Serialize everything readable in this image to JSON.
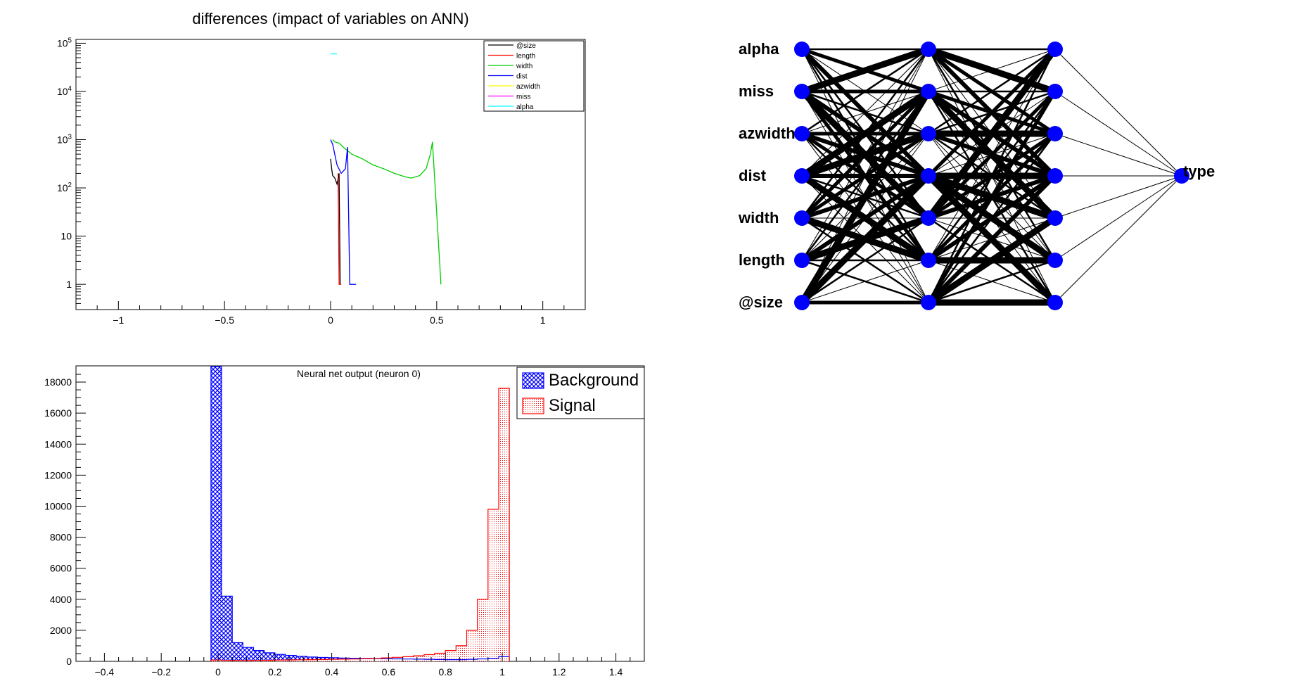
{
  "chart_data": [
    {
      "type": "line",
      "title": "differences (impact of variables on ANN)",
      "xlabel": "",
      "ylabel": "",
      "y_scale": "log",
      "xlim": [
        -1.2,
        1.2
      ],
      "ylim": [
        0.3,
        120000
      ],
      "x_ticks": [
        -1,
        -0.5,
        0,
        0.5,
        1
      ],
      "x_tick_labels": [
        "−1",
        "−0.5",
        "0",
        "0.5",
        "1"
      ],
      "y_ticks": [
        1,
        10,
        100,
        1000,
        10000,
        100000
      ],
      "y_tick_labels": [
        "1",
        "10",
        "10^2",
        "10^3",
        "10^4",
        "10^5"
      ],
      "legend_position": "top-right",
      "series": [
        {
          "name": "@size",
          "color": "#000000",
          "x": [
            0.0,
            0.005,
            0.01,
            0.02,
            0.03,
            0.04,
            0.045
          ],
          "y": [
            400,
            250,
            180,
            160,
            120,
            200,
            1
          ]
        },
        {
          "name": "length",
          "color": "#ff0000",
          "x": [
            0.035,
            0.04,
            0.045,
            0.05
          ],
          "y": [
            200,
            1,
            1,
            1
          ]
        },
        {
          "name": "width",
          "color": "#00cc00",
          "x": [
            0.01,
            0.02,
            0.04,
            0.06,
            0.1,
            0.15,
            0.2,
            0.25,
            0.3,
            0.35,
            0.38,
            0.42,
            0.45,
            0.47,
            0.48,
            0.52
          ],
          "y": [
            1000,
            900,
            850,
            700,
            500,
            400,
            300,
            250,
            200,
            170,
            160,
            180,
            250,
            500,
            900,
            1
          ]
        },
        {
          "name": "dist",
          "color": "#0000ff",
          "x": [
            0.0,
            0.01,
            0.03,
            0.05,
            0.07,
            0.08,
            0.09,
            0.11,
            0.12
          ],
          "y": [
            1000,
            800,
            300,
            200,
            250,
            700,
            1,
            1,
            1
          ]
        },
        {
          "name": "azwidth",
          "color": "#ffff00",
          "x": [],
          "y": []
        },
        {
          "name": "miss",
          "color": "#ff00ff",
          "x": [],
          "y": []
        },
        {
          "name": "alpha",
          "color": "#00ffff",
          "x": [
            0.0,
            0.01,
            0.02,
            0.03
          ],
          "y": [
            60000,
            60000,
            60000,
            60000
          ]
        }
      ]
    },
    {
      "type": "bar",
      "title": "Neural net output (neuron 0)",
      "xlabel": "",
      "ylabel": "",
      "xlim": [
        -0.5,
        1.5
      ],
      "ylim": [
        0,
        19000
      ],
      "x_ticks": [
        -0.4,
        -0.2,
        0,
        0.2,
        0.4,
        0.6,
        0.8,
        1,
        1.2,
        1.4
      ],
      "x_tick_labels": [
        "−0.4",
        "−0.2",
        "0",
        "0.2",
        "0.4",
        "0.6",
        "0.8",
        "1",
        "1.2",
        "1.4"
      ],
      "y_ticks": [
        0,
        2000,
        4000,
        6000,
        8000,
        10000,
        12000,
        14000,
        16000,
        18000
      ],
      "y_tick_labels": [
        "0",
        "2000",
        "4000",
        "6000",
        "8000",
        "10000",
        "12000",
        "14000",
        "16000",
        "18000"
      ],
      "legend_position": "top-right",
      "bin_edges": [
        -0.025,
        0.0125,
        0.05,
        0.0875,
        0.125,
        0.1625,
        0.2,
        0.2375,
        0.275,
        0.3125,
        0.35,
        0.3875,
        0.425,
        0.4625,
        0.5,
        0.5375,
        0.575,
        0.6125,
        0.65,
        0.6875,
        0.725,
        0.7625,
        0.8,
        0.8375,
        0.875,
        0.9125,
        0.95,
        0.9875,
        1.025
      ],
      "series": [
        {
          "name": "Background",
          "color": "#0000ff",
          "values": [
            19000,
            4200,
            1200,
            900,
            700,
            550,
            450,
            380,
            320,
            280,
            250,
            230,
            210,
            200,
            190,
            180,
            170,
            160,
            150,
            140,
            130,
            120,
            110,
            110,
            130,
            160,
            200,
            300
          ]
        },
        {
          "name": "Signal",
          "color": "#ff0000",
          "values": [
            80,
            60,
            50,
            50,
            60,
            70,
            80,
            90,
            100,
            110,
            120,
            130,
            140,
            150,
            170,
            190,
            220,
            260,
            300,
            360,
            430,
            520,
            700,
            1000,
            2000,
            4000,
            9800,
            17600
          ]
        }
      ]
    },
    {
      "type": "network",
      "layers": [
        [
          "alpha",
          "miss",
          "azwidth",
          "dist",
          "width",
          "length",
          "@size"
        ],
        [
          "",
          "",
          "",
          "",
          "",
          "",
          ""
        ],
        [
          "",
          "",
          "",
          "",
          "",
          "",
          ""
        ],
        [
          "type"
        ]
      ],
      "node_color": "#0000ff"
    }
  ]
}
